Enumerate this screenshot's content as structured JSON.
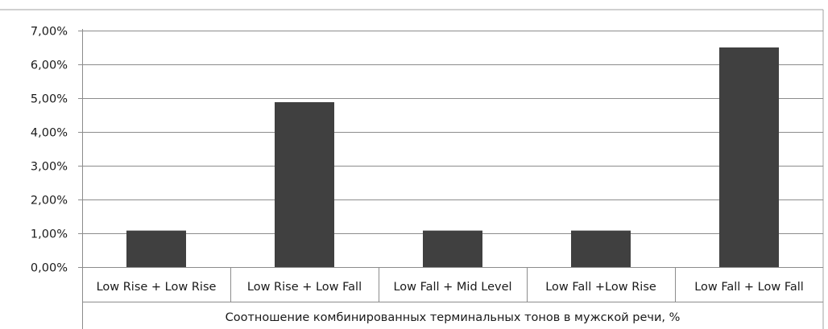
{
  "chart_data": {
    "type": "bar",
    "categories": [
      "Low Rise + Low Rise",
      "Low Rise + Low Fall",
      "Low Fall + Mid Level",
      "Low Fall +Low Rise",
      "Low Fall + Low Fall"
    ],
    "values": [
      1.08,
      4.88,
      1.08,
      1.08,
      6.5
    ],
    "ylim": [
      0,
      7
    ],
    "ytick_step": 1,
    "ytick_labels": [
      "0,00%",
      "1,00%",
      "2,00%",
      "3,00%",
      "4,00%",
      "5,00%",
      "6,00%",
      "7,00%"
    ],
    "title": "",
    "xlabel": "Соотношение комбинированных терминальных тонов в мужской речи, %",
    "ylabel": "",
    "grid": true,
    "legend": "none",
    "colors": {
      "bar": "#404040",
      "grid": "#8c8c8c",
      "axis": "#8c8c8c",
      "text": "#1a1a1a",
      "border": "#a0a0a0"
    }
  }
}
